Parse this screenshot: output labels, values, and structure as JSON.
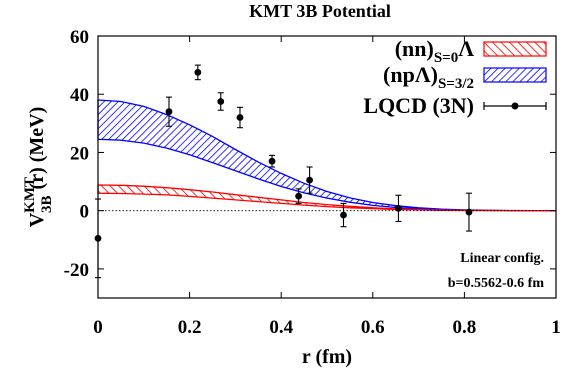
{
  "chart_data": {
    "type": "line",
    "title": "KMT 3B Potential",
    "xlabel": "r (fm)",
    "ylabel": {
      "main": "V",
      "sup": "KMT",
      "sub": "3B",
      "tail": "(r) (MeV)"
    },
    "xlim": [
      0,
      1
    ],
    "ylim": [
      -30,
      60
    ],
    "x_ticks": [
      0,
      0.2,
      0.4,
      0.6,
      0.8,
      1
    ],
    "x_tick_labels": [
      "0",
      "0.2",
      "0.4",
      "0.6",
      "0.8",
      "1"
    ],
    "y_ticks": [
      -20,
      0,
      20,
      40,
      60
    ],
    "y_tick_labels": [
      "-20",
      "0",
      "20",
      "40",
      "60"
    ],
    "grid": false,
    "legend_position": "top-right",
    "colors": {
      "nn": "#ff0000",
      "npL": "#0000ff",
      "lqcd": "#000000"
    },
    "series": [
      {
        "name": "(nn)",
        "name_sub": "S=0",
        "name_tail": "Λ",
        "kind": "band",
        "x": [
          0,
          0.05,
          0.1,
          0.15,
          0.2,
          0.25,
          0.3,
          0.35,
          0.4,
          0.45,
          0.5,
          0.55,
          0.6,
          0.65,
          0.7,
          0.75,
          0.8,
          0.85,
          0.9,
          0.95,
          1.0
        ],
        "upper": [
          8.8,
          8.7,
          8.4,
          7.9,
          7.2,
          6.4,
          5.5,
          4.6,
          3.7,
          2.8,
          2.1,
          1.5,
          1.0,
          0.6,
          0.35,
          0.2,
          0.1,
          0.05,
          0.02,
          0.01,
          0
        ],
        "lower": [
          6.0,
          5.9,
          5.7,
          5.4,
          4.9,
          4.3,
          3.7,
          3.1,
          2.5,
          1.9,
          1.4,
          1.0,
          0.7,
          0.4,
          0.25,
          0.13,
          0.07,
          0.03,
          0.01,
          0,
          0
        ]
      },
      {
        "name": "(npΛ)",
        "name_sub": "S=3/2",
        "name_tail": "",
        "kind": "band",
        "x": [
          0,
          0.05,
          0.1,
          0.15,
          0.2,
          0.25,
          0.3,
          0.35,
          0.4,
          0.45,
          0.5,
          0.55,
          0.6,
          0.65,
          0.7,
          0.75,
          0.8,
          0.85,
          0.9,
          0.95,
          1.0
        ],
        "upper": [
          38.0,
          37.5,
          35.8,
          33.0,
          29.5,
          25.5,
          21.0,
          16.7,
          12.8,
          9.4,
          6.6,
          4.4,
          2.8,
          1.7,
          1.0,
          0.5,
          0.25,
          0.12,
          0.05,
          0.02,
          0
        ],
        "lower": [
          24.5,
          24.2,
          23.2,
          21.5,
          19.2,
          16.5,
          13.7,
          10.9,
          8.3,
          6.1,
          4.3,
          2.9,
          1.8,
          1.1,
          0.6,
          0.33,
          0.16,
          0.08,
          0.03,
          0.01,
          0
        ]
      },
      {
        "name": "LQCD (3N)",
        "kind": "points",
        "points": [
          {
            "x": 0.0,
            "y": -9.5,
            "err": 13.5
          },
          {
            "x": 0.155,
            "y": 34.0,
            "err": 5.0
          },
          {
            "x": 0.218,
            "y": 47.5,
            "err": 2.5
          },
          {
            "x": 0.268,
            "y": 37.5,
            "err": 3.0
          },
          {
            "x": 0.31,
            "y": 32.0,
            "err": 3.5
          },
          {
            "x": 0.38,
            "y": 17.0,
            "err": 2.0
          },
          {
            "x": 0.438,
            "y": 5.0,
            "err": 2.5
          },
          {
            "x": 0.462,
            "y": 10.5,
            "err": 4.5
          },
          {
            "x": 0.536,
            "y": -1.5,
            "err": 4.0
          },
          {
            "x": 0.656,
            "y": 0.8,
            "err": 4.5
          },
          {
            "x": 0.81,
            "y": -0.5,
            "err": 6.5
          }
        ]
      }
    ],
    "annotations": [
      "Linear config.",
      "b=0.5562-0.6 fm"
    ]
  }
}
